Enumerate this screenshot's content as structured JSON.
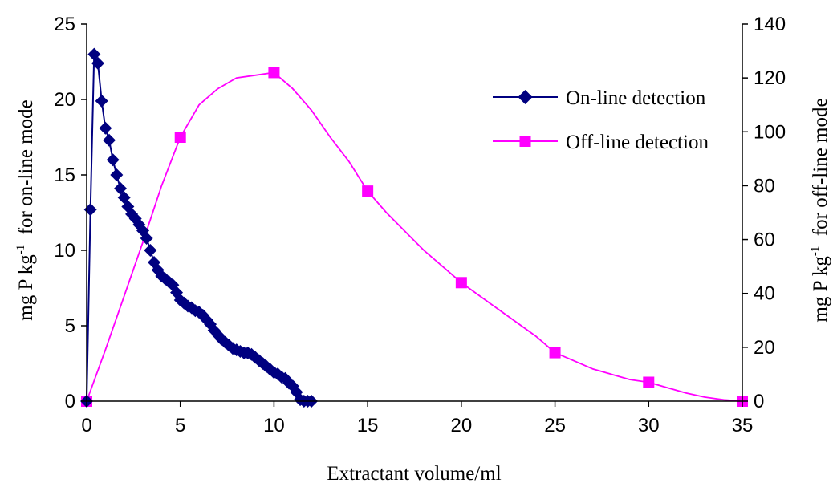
{
  "chart_data": {
    "type": "line",
    "title": "",
    "xlabel": "Extractant volume/ml",
    "ylabel_left": {
      "pre": "mg P kg",
      "sup": "-1",
      "post": "  for on-line mode"
    },
    "ylabel_right": {
      "pre": "mg P kg",
      "sup": "-1",
      "post": "  for off-line mode"
    },
    "xlim": [
      0,
      35
    ],
    "ylim_left": [
      0,
      25
    ],
    "ylim_right": [
      0,
      140
    ],
    "x_ticks": [
      "0",
      "5",
      "10",
      "15",
      "20",
      "25",
      "30",
      "35"
    ],
    "y_left_ticks": [
      "0",
      "5",
      "10",
      "15",
      "20",
      "25"
    ],
    "y_right_ticks": [
      "0",
      "20",
      "40",
      "60",
      "80",
      "100",
      "120",
      "140"
    ],
    "grid": false,
    "legend_position": "top-right",
    "series": [
      {
        "name": "On-line detection",
        "axis": "left",
        "marker": "diamond",
        "color": "#000080",
        "x": [
          0,
          0.2,
          0.4,
          0.6,
          0.8,
          1.0,
          1.2,
          1.4,
          1.6,
          1.8,
          2.0,
          2.2,
          2.4,
          2.6,
          2.8,
          3.0,
          3.2,
          3.4,
          3.6,
          3.8,
          4.0,
          4.2,
          4.4,
          4.6,
          4.8,
          5.0,
          5.2,
          5.4,
          5.6,
          5.8,
          6.0,
          6.2,
          6.4,
          6.6,
          6.8,
          7.0,
          7.2,
          7.4,
          7.6,
          7.8,
          8.0,
          8.2,
          8.4,
          8.6,
          8.8,
          9.0,
          9.2,
          9.4,
          9.6,
          9.8,
          10.0,
          10.2,
          10.4,
          10.6,
          10.8,
          11.0,
          11.2,
          11.4,
          11.6,
          11.8,
          12.0
        ],
        "y": [
          0,
          12.7,
          23.0,
          22.4,
          19.9,
          18.1,
          17.3,
          16.0,
          15.0,
          14.1,
          13.5,
          12.9,
          12.4,
          12.1,
          11.7,
          11.3,
          10.8,
          10.0,
          9.2,
          8.7,
          8.3,
          8.1,
          7.9,
          7.7,
          7.2,
          6.7,
          6.5,
          6.3,
          6.2,
          6.0,
          5.9,
          5.7,
          5.4,
          5.1,
          4.7,
          4.4,
          4.1,
          3.9,
          3.7,
          3.5,
          3.4,
          3.3,
          3.2,
          3.2,
          3.1,
          2.9,
          2.7,
          2.5,
          2.3,
          2.1,
          1.9,
          1.8,
          1.6,
          1.5,
          1.2,
          1.0,
          0.6,
          0.1,
          0,
          0,
          0
        ]
      },
      {
        "name": "Off-line detection",
        "axis": "right",
        "marker": "square",
        "color": "#FF00FF",
        "marker_x": [
          0,
          5,
          10,
          15,
          20,
          25,
          30,
          35
        ],
        "marker_y": [
          0,
          98,
          122,
          78,
          44,
          18,
          7,
          0
        ],
        "curve_x": [
          0,
          1,
          2,
          3,
          4,
          5,
          6,
          7,
          8,
          9,
          10,
          11,
          12,
          13,
          14,
          15,
          16,
          17,
          18,
          19,
          20,
          21,
          22,
          23,
          24,
          25,
          26,
          27,
          28,
          29,
          30,
          31,
          32,
          33,
          34,
          35
        ],
        "curve_y": [
          0,
          19,
          39,
          59,
          80,
          98,
          110,
          116,
          120,
          121,
          122,
          116,
          108,
          98,
          89,
          78,
          70,
          63,
          56,
          50,
          44,
          39,
          34,
          29,
          24,
          18,
          15,
          12,
          10,
          8,
          7,
          5,
          3,
          1.5,
          0.5,
          0
        ]
      }
    ]
  }
}
